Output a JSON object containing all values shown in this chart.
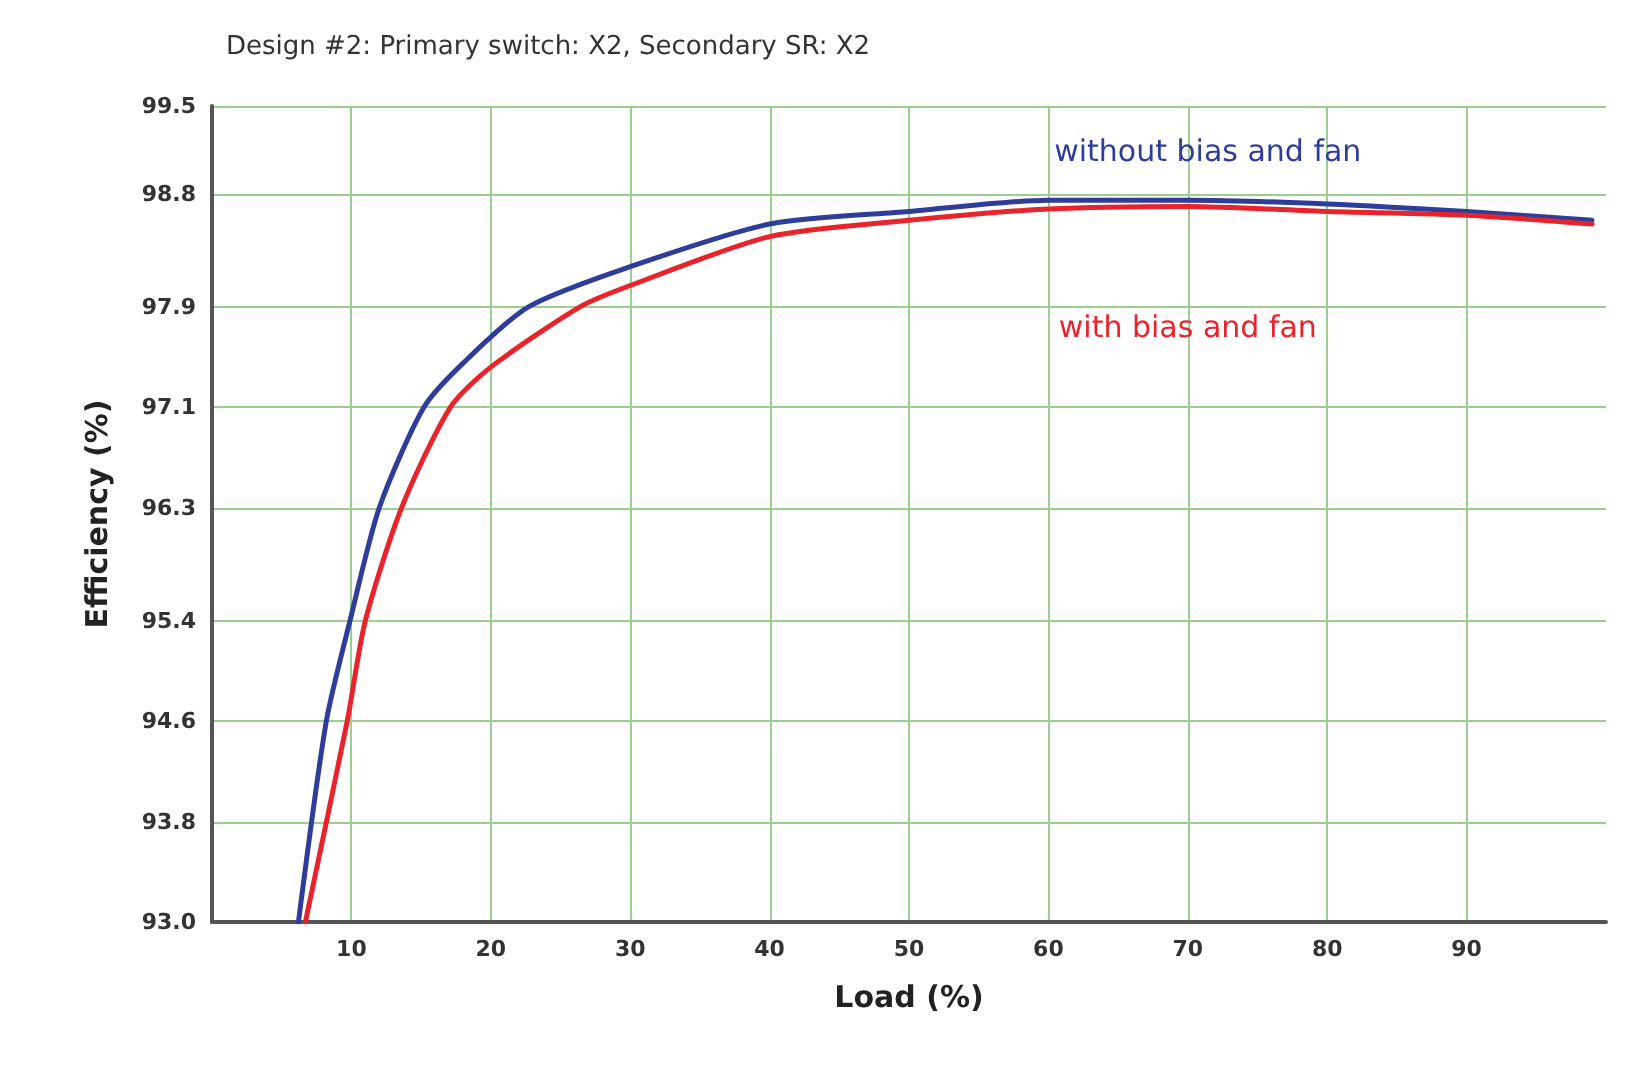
{
  "chart_data": {
    "type": "line",
    "title": "Design #2: Primary switch: X2, Secondary SR: X2",
    "xlabel": "Load (%)",
    "ylabel": "Efficiency (%)",
    "xlim": [
      0,
      100
    ],
    "xticks": [
      10,
      20,
      30,
      40,
      50,
      60,
      70,
      80,
      90
    ],
    "ylim": [
      93,
      99.5
    ],
    "yticks": [
      {
        "value": 93,
        "label": "93.0"
      },
      93.8,
      94.6,
      95.4,
      96.3,
      97.1,
      97.9,
      98.8,
      99.5
    ],
    "grid": true,
    "marker": "none",
    "line_style": "solid",
    "series": [
      {
        "name": "without bias and fan",
        "color": "#2e3d9a",
        "x": [
          6.2,
          8.2,
          9.9,
          12.0,
          15.2,
          18.0,
          22.7,
          30,
          40,
          50,
          60,
          70,
          80,
          90,
          99
        ],
        "values": [
          93.0,
          94.6,
          95.4,
          96.3,
          97.1,
          97.45,
          97.9,
          98.22,
          98.56,
          98.66,
          98.75,
          98.75,
          98.72,
          98.66,
          98.59
        ]
      },
      {
        "name": "with bias and fan",
        "color": "#e8232b",
        "x": [
          6.7,
          9.7,
          11.0,
          13.6,
          17.1,
          20.0,
          26.4,
          30,
          40,
          50,
          60,
          70,
          80,
          90,
          99
        ],
        "values": [
          93.0,
          94.6,
          95.4,
          96.3,
          97.1,
          97.42,
          97.9,
          98.07,
          98.46,
          98.59,
          98.68,
          98.7,
          98.66,
          98.63,
          98.56
        ]
      }
    ]
  }
}
